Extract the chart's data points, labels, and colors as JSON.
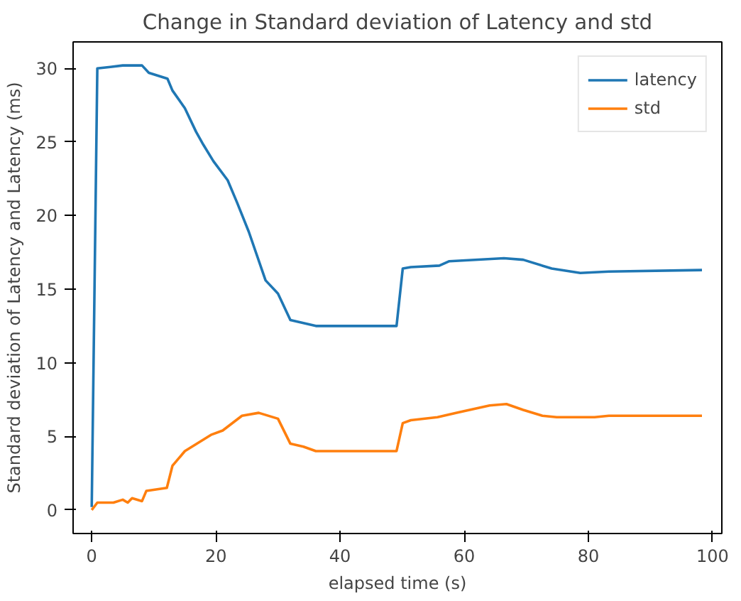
{
  "chart_data": {
    "type": "line",
    "title": "Change in Standard deviation of Latency and std",
    "xlabel": "elapsed time (s)",
    "ylabel": "Standard deviation of Latency and Latency (ms)",
    "xlim": [
      -3,
      101.5
    ],
    "ylim": [
      -1.6,
      31.8
    ],
    "xticks": [
      0,
      20,
      40,
      60,
      80,
      100
    ],
    "yticks": [
      0,
      5,
      10,
      15,
      20,
      25,
      30
    ],
    "grid": false,
    "legend": "top right",
    "line_style": "solid",
    "series": [
      {
        "name": "latency",
        "color": "#1f77b4",
        "x": [
          0,
          0.9,
          3,
          5,
          8.1,
          9.2,
          12.2,
          13,
          15,
          16.8,
          18,
          19.6,
          21.9,
          23.4,
          25.3,
          28,
          30,
          32,
          36.1,
          49.1,
          50.1,
          51.4,
          56,
          57.6,
          66.4,
          69.5,
          74.1,
          78.7,
          83.3,
          98.3
        ],
        "values": [
          0.2,
          30.0,
          30.1,
          30.2,
          30.2,
          29.7,
          29.3,
          28.5,
          27.3,
          25.7,
          24.8,
          23.7,
          22.4,
          20.9,
          18.9,
          15.6,
          14.7,
          12.9,
          12.5,
          12.5,
          16.4,
          16.5,
          16.6,
          16.9,
          17.1,
          17.0,
          16.4,
          16.1,
          16.2,
          16.3
        ]
      },
      {
        "name": "std",
        "color": "#ff7f0e",
        "x": [
          0,
          0.9,
          3.5,
          5,
          5.8,
          6.5,
          8.1,
          8.8,
          12.1,
          13,
          15,
          19.2,
          21.1,
          24.2,
          26.9,
          30,
          32,
          34.1,
          36.1,
          49.1,
          50.1,
          51.4,
          55.7,
          58.8,
          64.1,
          66.8,
          69.5,
          72.6,
          74.9,
          81,
          83.3,
          98.3
        ],
        "values": [
          0,
          0.5,
          0.5,
          0.7,
          0.5,
          0.8,
          0.6,
          1.3,
          1.5,
          3.0,
          4.0,
          5.1,
          5.4,
          6.4,
          6.6,
          6.2,
          4.5,
          4.3,
          4.0,
          4.0,
          5.9,
          6.1,
          6.3,
          6.6,
          7.1,
          7.2,
          6.8,
          6.4,
          6.3,
          6.3,
          6.4,
          6.4
        ]
      }
    ]
  }
}
